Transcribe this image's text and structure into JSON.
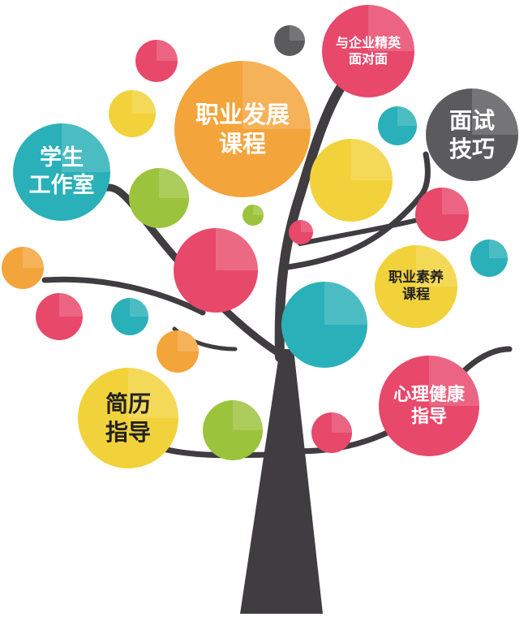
{
  "colors": {
    "trunk": "#3f3d40",
    "pink": "#e8486a",
    "teal": "#2ab0b8",
    "orange": "#f3a43a",
    "yellow": "#f2d23a",
    "green": "#9cc33c",
    "gray": "#5b5b5e",
    "white_text": "#ffffff",
    "dark_text": "#222222"
  },
  "topics": {
    "student_studio": "学生\n工作室",
    "career_course": "职业发展\n课程",
    "elite_meeting": "与企业精英\n面对面",
    "interview_skills": "面试\n技巧",
    "quality_course": "职业素养\n课程",
    "resume_guidance": "简历\n指导",
    "mental_health": "心理健康\n指导"
  },
  "decor_bubbles": [
    {
      "color": "gray"
    },
    {
      "color": "pink"
    },
    {
      "color": "yellow"
    },
    {
      "color": "teal"
    },
    {
      "color": "yellow"
    },
    {
      "color": "green"
    },
    {
      "color": "green"
    },
    {
      "color": "pink"
    },
    {
      "color": "pink"
    },
    {
      "color": "teal"
    },
    {
      "color": "orange"
    },
    {
      "color": "pink"
    },
    {
      "color": "teal"
    },
    {
      "color": "orange"
    },
    {
      "color": "teal"
    },
    {
      "color": "green"
    },
    {
      "color": "pink"
    }
  ]
}
